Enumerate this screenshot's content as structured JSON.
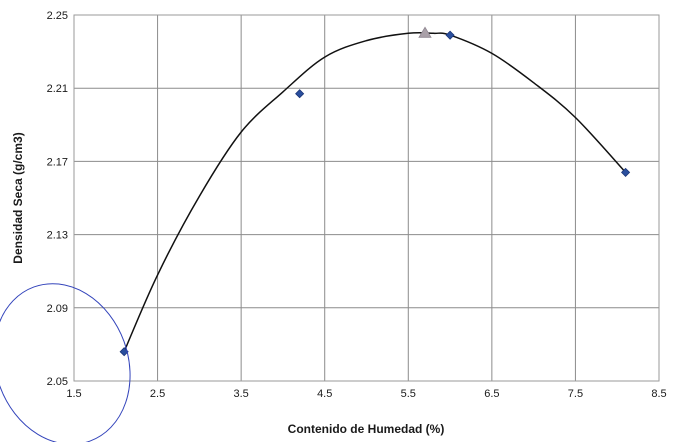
{
  "chart_data": {
    "type": "scatter",
    "title": "",
    "xlabel": "Contenido de Humedad (%)",
    "ylabel": "Densidad Seca (g/cm3)",
    "xlim": [
      1.5,
      8.5
    ],
    "ylim": [
      2.05,
      2.25
    ],
    "x_ticks": [
      "1.5",
      "2.5",
      "3.5",
      "4.5",
      "5.5",
      "6.5",
      "7.5",
      "8.5"
    ],
    "y_ticks": [
      "2.05",
      "2.09",
      "2.13",
      "2.17",
      "2.21",
      "2.25"
    ],
    "grid": true,
    "legend": "none",
    "series": [
      {
        "kind": "points",
        "marker": "diamond",
        "color": "#2a4f9e",
        "x": [
          2.1,
          4.2,
          6.0,
          8.1
        ],
        "y": [
          2.066,
          2.207,
          2.239,
          2.164
        ]
      },
      {
        "kind": "trend-curve",
        "color": "#111111",
        "x": [
          2.1,
          2.5,
          3.0,
          3.5,
          4.0,
          4.5,
          5.0,
          5.5,
          5.8,
          6.0,
          6.5,
          7.0,
          7.5,
          8.1
        ],
        "y": [
          2.066,
          2.108,
          2.151,
          2.186,
          2.208,
          2.227,
          2.236,
          2.24,
          2.24,
          2.239,
          2.229,
          2.213,
          2.194,
          2.164
        ]
      },
      {
        "kind": "optimum",
        "marker": "triangle",
        "color": "#a9a0a8",
        "x": [
          5.7
        ],
        "y": [
          2.24
        ]
      }
    ]
  },
  "colors": {
    "grid": "#8c8c8c",
    "frame": "#9a9a9a",
    "annotation_circle": "#3344bb"
  }
}
